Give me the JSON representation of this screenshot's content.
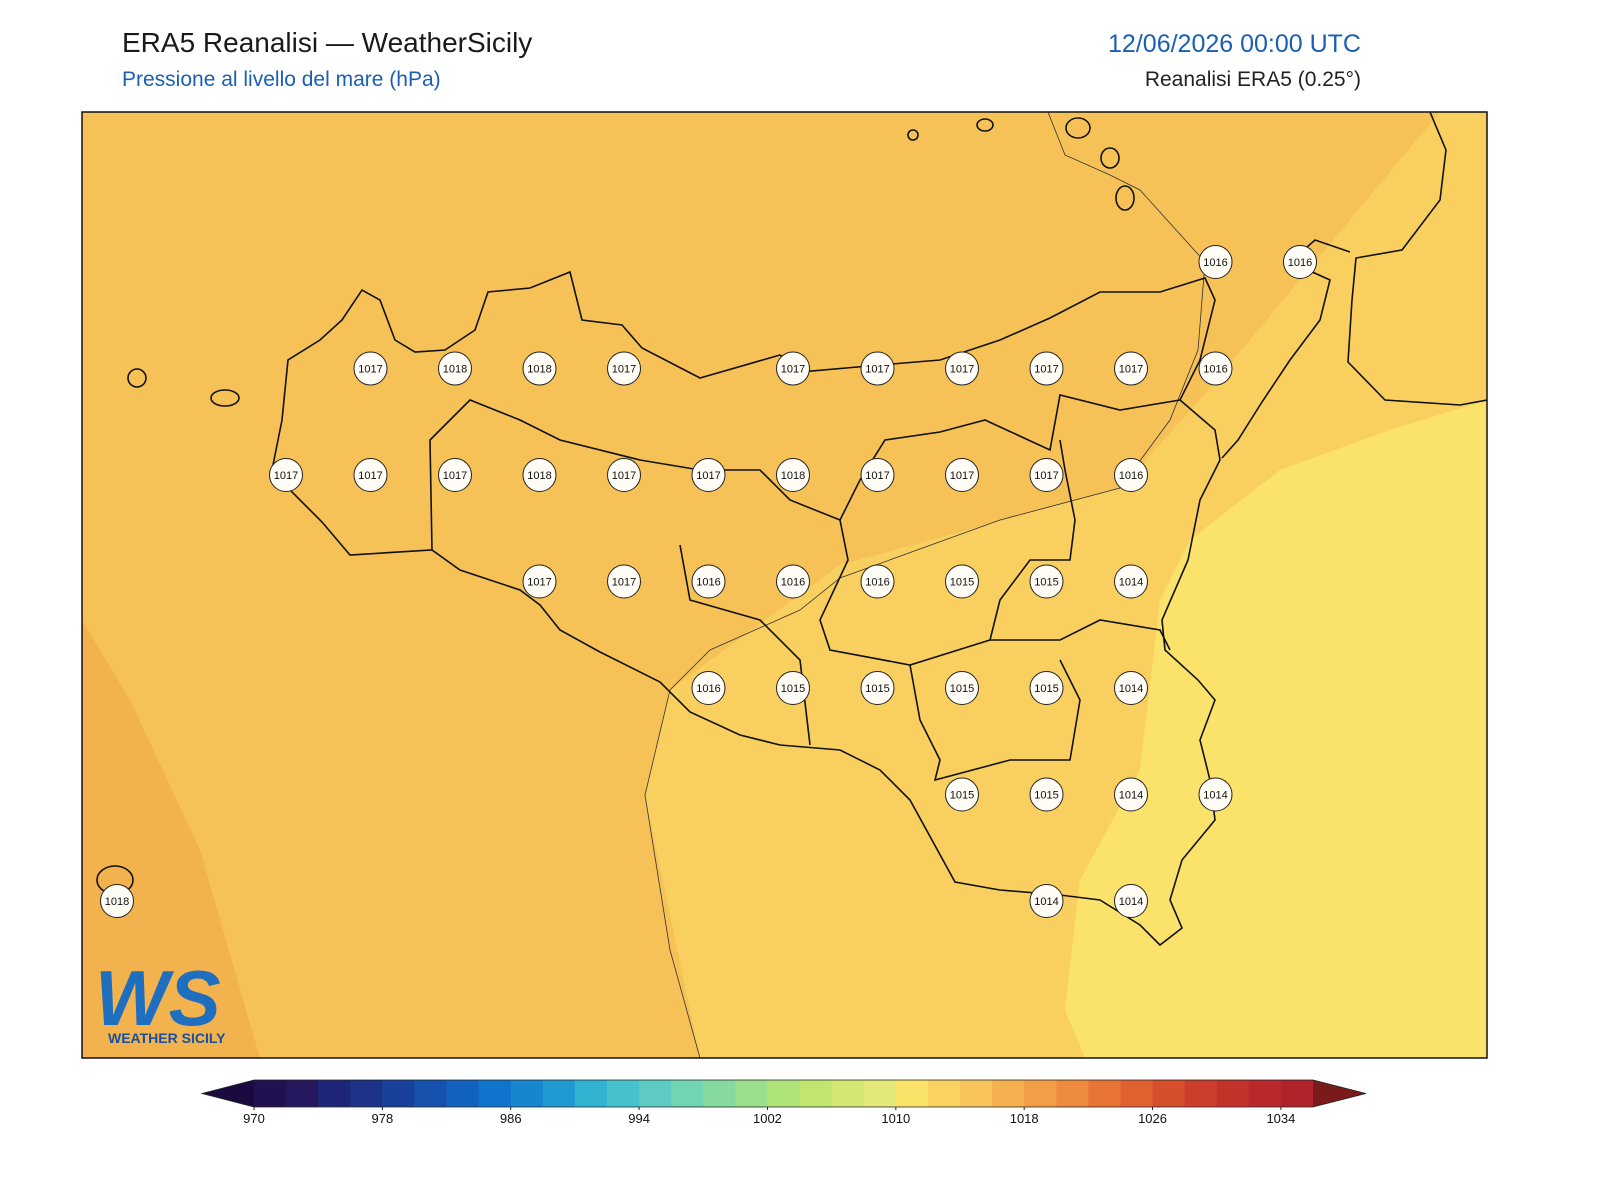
{
  "header": {
    "title": "ERA5 Reanalisi — WeatherSicily",
    "subtitle": "Pressione al livello del mare (hPa)",
    "datetime": "12/06/2026 00:00 UTC",
    "source": "Reanalisi ERA5 (0.25°)"
  },
  "logo": {
    "mark": "WS",
    "name": "WEATHER SICILY"
  },
  "map": {
    "stations": [
      [
        null,
        null,
        null,
        null,
        null,
        null,
        null,
        null,
        null,
        null,
        null,
        null,
        null,
        1016,
        1016
      ],
      [
        null,
        null,
        null,
        1017,
        1018,
        1018,
        1017,
        null,
        1017,
        1017,
        1017,
        1017,
        1017,
        1016,
        null
      ],
      [
        null,
        null,
        1017,
        1017,
        1017,
        1018,
        1017,
        1017,
        1018,
        1017,
        1017,
        1017,
        1016,
        null,
        null
      ],
      [
        null,
        null,
        null,
        null,
        null,
        1017,
        1017,
        1016,
        1016,
        1016,
        1015,
        1015,
        1014,
        null,
        null
      ],
      [
        null,
        null,
        null,
        null,
        null,
        null,
        null,
        1016,
        1015,
        1015,
        1015,
        1015,
        1014,
        null,
        null
      ],
      [
        null,
        null,
        null,
        null,
        null,
        null,
        null,
        null,
        null,
        null,
        1015,
        1015,
        1014,
        1014,
        null
      ],
      [
        1018,
        null,
        null,
        null,
        null,
        null,
        null,
        null,
        null,
        null,
        null,
        1014,
        1014,
        null,
        null
      ]
    ]
  },
  "colorbar": {
    "range": [
      970,
      1036
    ],
    "ticks": [
      970,
      978,
      986,
      994,
      1002,
      1010,
      1018,
      1026,
      1034
    ],
    "under_color": "#1b0a3f",
    "over_color": "#7a1a1a",
    "colors": [
      "#221150",
      "#25185f",
      "#1f2577",
      "#1c3388",
      "#19419b",
      "#1652ad",
      "#1362bf",
      "#0f74cb",
      "#1786cf",
      "#219ad2",
      "#32b3d2",
      "#47c2cd",
      "#5dcbc2",
      "#71d4b2",
      "#86daa0",
      "#9bdf8c",
      "#aee37a",
      "#c1e56e",
      "#d3e772",
      "#e4e878",
      "#fbe36a",
      "#fad262",
      "#f8c35a",
      "#f5b150",
      "#f29e47",
      "#ee8a3e",
      "#e87435",
      "#e0602f",
      "#d64e2c",
      "#cc3d2b",
      "#c2322b",
      "#b9282b",
      "#b0232a"
    ]
  }
}
